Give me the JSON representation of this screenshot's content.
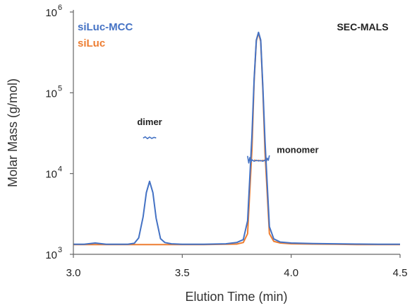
{
  "chart_data": {
    "type": "line",
    "title": "SEC-MALS",
    "xlabel": "Elution Time (min)",
    "ylabel": "Molar Mass (g/mol)",
    "xlim": [
      3.0,
      4.5
    ],
    "ylim": [
      1000,
      1000000
    ],
    "yscale": "log",
    "x_ticks": [
      "3.0",
      "3.5",
      "4.0",
      "4.5"
    ],
    "x_tick_values": [
      3.0,
      3.5,
      4.0,
      4.5
    ],
    "y_ticks": [
      {
        "value": 1000,
        "base": "10",
        "exp": "3"
      },
      {
        "value": 10000,
        "base": "10",
        "exp": "4"
      },
      {
        "value": 100000,
        "base": "10",
        "exp": "5"
      },
      {
        "value": 1000000,
        "base": "10",
        "exp": "6"
      }
    ],
    "grid": false,
    "legend_position": "top-left",
    "colors": {
      "siLuc-MCC": "#4472c4",
      "siLuc": "#ed7d31"
    },
    "annotations": [
      {
        "text": "dimer",
        "x": 3.35,
        "y": 40000
      },
      {
        "text": "monomer",
        "x": 4.03,
        "y": 18000
      }
    ],
    "series": [
      {
        "name": "siLuc-MCC",
        "color": "#4472c4",
        "kind": "trace",
        "x": [
          3.0,
          3.05,
          3.1,
          3.15,
          3.2,
          3.25,
          3.28,
          3.3,
          3.32,
          3.335,
          3.35,
          3.365,
          3.38,
          3.4,
          3.42,
          3.45,
          3.5,
          3.6,
          3.7,
          3.75,
          3.78,
          3.8,
          3.82,
          3.83,
          3.84,
          3.85,
          3.86,
          3.87,
          3.88,
          3.9,
          3.92,
          3.95,
          4.0,
          4.1,
          4.2,
          4.3,
          4.4,
          4.5
        ],
        "y": [
          1330,
          1330,
          1380,
          1330,
          1330,
          1330,
          1370,
          1600,
          2900,
          5800,
          8000,
          5800,
          2800,
          1560,
          1400,
          1350,
          1330,
          1330,
          1350,
          1400,
          1520,
          2600,
          30000,
          150000,
          450000,
          560000,
          450000,
          120000,
          25000,
          2200,
          1550,
          1420,
          1380,
          1360,
          1350,
          1340,
          1330,
          1330
        ]
      },
      {
        "name": "siLuc",
        "color": "#ed7d31",
        "kind": "trace",
        "x": [
          3.0,
          3.1,
          3.2,
          3.3,
          3.4,
          3.5,
          3.6,
          3.7,
          3.75,
          3.78,
          3.8,
          3.82,
          3.83,
          3.84,
          3.85,
          3.86,
          3.87,
          3.88,
          3.9,
          3.92,
          3.95,
          4.0,
          4.1,
          4.2,
          4.3,
          4.4,
          4.5
        ],
        "y": [
          1320,
          1320,
          1320,
          1320,
          1320,
          1320,
          1320,
          1330,
          1340,
          1400,
          1800,
          20000,
          140000,
          440000,
          550000,
          430000,
          110000,
          18000,
          1800,
          1450,
          1380,
          1350,
          1340,
          1330,
          1320,
          1320,
          1320
        ]
      },
      {
        "name": "siLuc-MCC",
        "color": "#4472c4",
        "kind": "molar-mass",
        "x": [
          3.32,
          3.33,
          3.34,
          3.35,
          3.36,
          3.37,
          3.38
        ],
        "y": [
          27500,
          28500,
          27000,
          28300,
          27200,
          28100,
          27600
        ]
      },
      {
        "name": "siLuc-MCC",
        "color": "#4472c4",
        "kind": "molar-mass",
        "x": [
          3.8,
          3.805,
          3.81,
          3.815,
          3.82,
          3.83,
          3.84,
          3.85,
          3.86,
          3.87,
          3.88,
          3.885,
          3.89,
          3.895,
          3.9
        ],
        "y": [
          16500,
          13500,
          15800,
          13800,
          14800,
          14200,
          14600,
          14300,
          14500,
          14200,
          14700,
          13900,
          15500,
          14600,
          16800
        ]
      },
      {
        "name": "siLuc",
        "color": "#ed7d31",
        "kind": "molar-mass",
        "x": [
          3.83,
          3.84,
          3.85,
          3.86,
          3.87,
          3.88,
          3.89
        ],
        "y": [
          14800,
          14400,
          14600,
          14300,
          14600,
          14400,
          14700
        ]
      }
    ]
  }
}
